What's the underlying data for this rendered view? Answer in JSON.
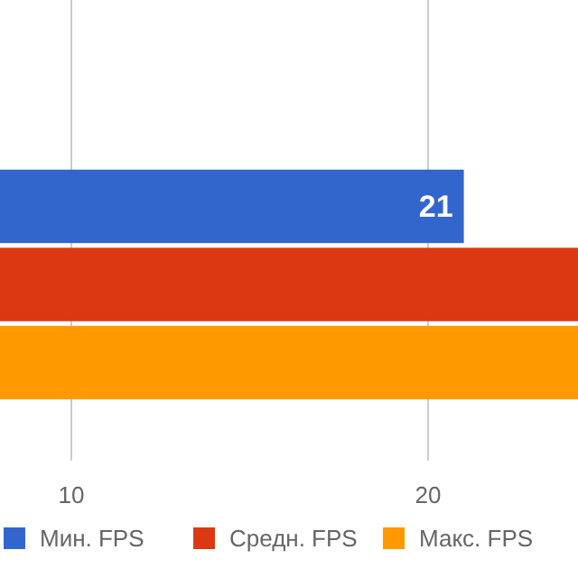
{
  "chart_data": {
    "type": "bar",
    "orientation": "horizontal",
    "categories": [
      null
    ],
    "series": [
      {
        "name": "Мин. FPS",
        "color": "#3366cc",
        "values": [
          21
        ],
        "value_labels": [
          "21"
        ]
      },
      {
        "name": "Средн. FPS",
        "color": "#dc3912",
        "values": [
          24.2
        ],
        "value_labels": [
          null
        ]
      },
      {
        "name": "Макс. FPS",
        "color": "#ff9900",
        "values": [
          24.2
        ],
        "value_labels": [
          null
        ]
      }
    ],
    "xlim": [
      8,
      24.2
    ],
    "xticks": [
      10,
      20
    ],
    "grid": "x",
    "legend": "bottom"
  }
}
